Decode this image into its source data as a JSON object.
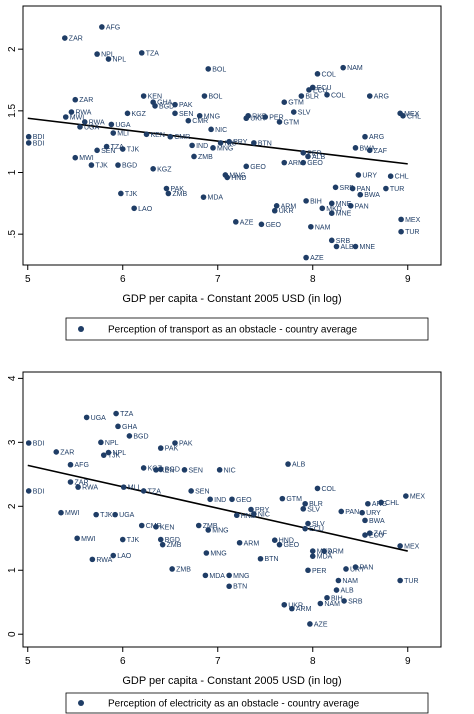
{
  "colors": {
    "marker": "#1f3d66",
    "line": "#000000",
    "axis": "#000000",
    "background": "#ffffff"
  },
  "chart_data": [
    {
      "type": "scatter",
      "title": "",
      "xlabel": "GDP per capita - Constant 2005 USD (in log)",
      "ylabel": "",
      "xlim": [
        4.95,
        9.35
      ],
      "ylim": [
        0.25,
        2.35
      ],
      "xticks": [
        "5",
        "6",
        "7",
        "8",
        "9"
      ],
      "yticks": [
        ".5",
        "1",
        "1.5",
        "2"
      ],
      "legend": "Perception of transport as an obstacle - country average",
      "legend_position": "bottom",
      "fit_line": {
        "x": [
          5.0,
          9.0
        ],
        "y": [
          1.44,
          1.07
        ]
      },
      "points": [
        {
          "label": "AFG",
          "x": 5.78,
          "y": 2.18
        },
        {
          "label": "ZAR",
          "x": 5.39,
          "y": 2.09
        },
        {
          "label": "NPL",
          "x": 5.73,
          "y": 1.96
        },
        {
          "label": "NPL",
          "x": 5.85,
          "y": 1.92
        },
        {
          "label": "TZA",
          "x": 6.2,
          "y": 1.97
        },
        {
          "label": "BOL",
          "x": 6.9,
          "y": 1.84
        },
        {
          "label": "NAM",
          "x": 8.32,
          "y": 1.85
        },
        {
          "label": "COL",
          "x": 8.05,
          "y": 1.8
        },
        {
          "label": "ECU",
          "x": 8.0,
          "y": 1.69
        },
        {
          "label": "ECU",
          "x": 7.96,
          "y": 1.67
        },
        {
          "label": "COL",
          "x": 8.15,
          "y": 1.63
        },
        {
          "label": "ARG",
          "x": 8.6,
          "y": 1.62
        },
        {
          "label": "BOL",
          "x": 6.86,
          "y": 1.62
        },
        {
          "label": "ZAR",
          "x": 5.5,
          "y": 1.59
        },
        {
          "label": "KEN",
          "x": 6.22,
          "y": 1.62
        },
        {
          "label": "GHA",
          "x": 6.32,
          "y": 1.57
        },
        {
          "label": "BGD",
          "x": 6.34,
          "y": 1.54
        },
        {
          "label": "PAK",
          "x": 6.55,
          "y": 1.55
        },
        {
          "label": "GTM",
          "x": 7.7,
          "y": 1.57
        },
        {
          "label": "BLR",
          "x": 7.88,
          "y": 1.62
        },
        {
          "label": "SLV",
          "x": 7.8,
          "y": 1.49
        },
        {
          "label": "MEX",
          "x": 8.92,
          "y": 1.48
        },
        {
          "label": "CHL",
          "x": 8.95,
          "y": 1.46
        },
        {
          "label": "RWA",
          "x": 5.46,
          "y": 1.49
        },
        {
          "label": "MWI",
          "x": 5.4,
          "y": 1.45
        },
        {
          "label": "KGZ",
          "x": 6.05,
          "y": 1.48
        },
        {
          "label": "SEN",
          "x": 6.55,
          "y": 1.48
        },
        {
          "label": "MNG",
          "x": 6.81,
          "y": 1.46
        },
        {
          "label": "RKR",
          "x": 7.32,
          "y": 1.46
        },
        {
          "label": "UKR",
          "x": 7.3,
          "y": 1.44
        },
        {
          "label": "PER",
          "x": 7.5,
          "y": 1.45
        },
        {
          "label": "RWA",
          "x": 5.6,
          "y": 1.41
        },
        {
          "label": "UGA",
          "x": 5.88,
          "y": 1.39
        },
        {
          "label": "UGA",
          "x": 5.55,
          "y": 1.37
        },
        {
          "label": "CMR",
          "x": 6.69,
          "y": 1.42
        },
        {
          "label": "NIC",
          "x": 6.93,
          "y": 1.35
        },
        {
          "label": "GTM",
          "x": 7.65,
          "y": 1.41
        },
        {
          "label": "MLI",
          "x": 5.9,
          "y": 1.32
        },
        {
          "label": "KEN",
          "x": 6.25,
          "y": 1.31
        },
        {
          "label": "CMR",
          "x": 6.5,
          "y": 1.29
        },
        {
          "label": "BDI",
          "x": 5.01,
          "y": 1.29
        },
        {
          "label": "BDI",
          "x": 5.01,
          "y": 1.24
        },
        {
          "label": "BTN",
          "x": 7.38,
          "y": 1.24
        },
        {
          "label": "ARG",
          "x": 8.55,
          "y": 1.29
        },
        {
          "label": "TJK",
          "x": 6.0,
          "y": 1.19
        },
        {
          "label": "TZA",
          "x": 5.83,
          "y": 1.21
        },
        {
          "label": "SEN",
          "x": 5.73,
          "y": 1.18
        },
        {
          "label": "IND",
          "x": 6.73,
          "y": 1.22
        },
        {
          "label": "NIC",
          "x": 7.03,
          "y": 1.24
        },
        {
          "label": "PRY",
          "x": 7.12,
          "y": 1.25
        },
        {
          "label": "MNG",
          "x": 6.95,
          "y": 1.2
        },
        {
          "label": "PER",
          "x": 7.9,
          "y": 1.16
        },
        {
          "label": "BWA",
          "x": 8.45,
          "y": 1.2
        },
        {
          "label": "ZAF",
          "x": 8.6,
          "y": 1.18
        },
        {
          "label": "MWI",
          "x": 5.5,
          "y": 1.12
        },
        {
          "label": "TJK",
          "x": 5.67,
          "y": 1.06
        },
        {
          "label": "BGD",
          "x": 5.95,
          "y": 1.06
        },
        {
          "label": "KGZ",
          "x": 6.32,
          "y": 1.03
        },
        {
          "label": "ZMB",
          "x": 6.75,
          "y": 1.13
        },
        {
          "label": "ALB",
          "x": 7.95,
          "y": 1.13
        },
        {
          "label": "ARM",
          "x": 7.7,
          "y": 1.08
        },
        {
          "label": "GEO",
          "x": 7.9,
          "y": 1.08
        },
        {
          "label": "MNG",
          "x": 7.08,
          "y": 0.98
        },
        {
          "label": "HND",
          "x": 7.1,
          "y": 0.96
        },
        {
          "label": "URY",
          "x": 8.48,
          "y": 0.98
        },
        {
          "label": "CHL",
          "x": 8.82,
          "y": 0.97
        },
        {
          "label": "GEO",
          "x": 7.3,
          "y": 1.05
        },
        {
          "label": "SRB",
          "x": 8.24,
          "y": 0.88
        },
        {
          "label": "PAN",
          "x": 8.42,
          "y": 0.87
        },
        {
          "label": "TUR",
          "x": 8.77,
          "y": 0.87
        },
        {
          "label": "PAK",
          "x": 6.46,
          "y": 0.87
        },
        {
          "label": "ZMB",
          "x": 6.48,
          "y": 0.83
        },
        {
          "label": "TJK",
          "x": 5.98,
          "y": 0.83
        },
        {
          "label": "MDA",
          "x": 6.85,
          "y": 0.8
        },
        {
          "label": "LAO",
          "x": 6.12,
          "y": 0.71
        },
        {
          "label": "BIH",
          "x": 7.93,
          "y": 0.77
        },
        {
          "label": "ARM",
          "x": 7.62,
          "y": 0.73
        },
        {
          "label": "UKR",
          "x": 7.6,
          "y": 0.69
        },
        {
          "label": "MKD",
          "x": 8.1,
          "y": 0.71
        },
        {
          "label": "MNE",
          "x": 8.2,
          "y": 0.67
        },
        {
          "label": "BWA",
          "x": 8.5,
          "y": 0.82
        },
        {
          "label": "PAN",
          "x": 8.4,
          "y": 0.73
        },
        {
          "label": "MNE",
          "x": 8.2,
          "y": 0.75
        },
        {
          "label": "AZE",
          "x": 7.19,
          "y": 0.6
        },
        {
          "label": "GEO",
          "x": 7.46,
          "y": 0.58
        },
        {
          "label": "NAM",
          "x": 7.98,
          "y": 0.56
        },
        {
          "label": "MEX",
          "x": 8.93,
          "y": 0.62
        },
        {
          "label": "SRB",
          "x": 8.2,
          "y": 0.45
        },
        {
          "label": "ALB",
          "x": 8.25,
          "y": 0.4
        },
        {
          "label": "MNE",
          "x": 8.45,
          "y": 0.4
        },
        {
          "label": "TUR",
          "x": 8.93,
          "y": 0.52
        },
        {
          "label": "AZE",
          "x": 7.93,
          "y": 0.31
        }
      ]
    },
    {
      "type": "scatter",
      "title": "",
      "xlabel": "GDP per capita - Constant 2005 USD (in log)",
      "ylabel": "",
      "xlim": [
        4.95,
        9.35
      ],
      "ylim": [
        -0.2,
        4.1
      ],
      "xticks": [
        "5",
        "6",
        "7",
        "8",
        "9"
      ],
      "yticks": [
        "0",
        "1",
        "2",
        "3",
        "4"
      ],
      "legend": "Perception of electricity as an obstacle - country average",
      "legend_position": "bottom",
      "fit_line": {
        "x": [
          5.0,
          9.0
        ],
        "y": [
          2.64,
          1.3
        ]
      },
      "points": [
        {
          "label": "TZA",
          "x": 5.93,
          "y": 3.45
        },
        {
          "label": "UGA",
          "x": 5.62,
          "y": 3.39
        },
        {
          "label": "GHA",
          "x": 5.95,
          "y": 3.25
        },
        {
          "label": "BGD",
          "x": 6.07,
          "y": 3.1
        },
        {
          "label": "NPL",
          "x": 5.77,
          "y": 3.0
        },
        {
          "label": "BDI",
          "x": 5.01,
          "y": 2.99
        },
        {
          "label": "PAK",
          "x": 6.55,
          "y": 2.99
        },
        {
          "label": "PAK",
          "x": 6.4,
          "y": 2.91
        },
        {
          "label": "ZAR",
          "x": 5.3,
          "y": 2.85
        },
        {
          "label": "NPL",
          "x": 5.85,
          "y": 2.84
        },
        {
          "label": "TJK",
          "x": 5.8,
          "y": 2.8
        },
        {
          "label": "AFG",
          "x": 5.45,
          "y": 2.65
        },
        {
          "label": "ALB",
          "x": 7.74,
          "y": 2.66
        },
        {
          "label": "KGZ",
          "x": 6.22,
          "y": 2.6
        },
        {
          "label": "BGD",
          "x": 6.4,
          "y": 2.58
        },
        {
          "label": "KEN",
          "x": 6.35,
          "y": 2.57
        },
        {
          "label": "SEN",
          "x": 6.65,
          "y": 2.57
        },
        {
          "label": "NIC",
          "x": 7.02,
          "y": 2.57
        },
        {
          "label": "ZAR",
          "x": 5.45,
          "y": 2.38
        },
        {
          "label": "RWA",
          "x": 5.53,
          "y": 2.3
        },
        {
          "label": "BDI",
          "x": 5.01,
          "y": 2.24
        },
        {
          "label": "MLI",
          "x": 6.01,
          "y": 2.3
        },
        {
          "label": "TZA",
          "x": 6.22,
          "y": 2.24
        },
        {
          "label": "SEN",
          "x": 6.72,
          "y": 2.24
        },
        {
          "label": "COL",
          "x": 8.05,
          "y": 2.28
        },
        {
          "label": "MEX",
          "x": 8.98,
          "y": 2.16
        },
        {
          "label": "IND",
          "x": 6.92,
          "y": 2.11
        },
        {
          "label": "GEO",
          "x": 7.15,
          "y": 2.11
        },
        {
          "label": "GTM",
          "x": 7.68,
          "y": 2.12
        },
        {
          "label": "BLR",
          "x": 7.92,
          "y": 2.04
        },
        {
          "label": "ARG",
          "x": 8.58,
          "y": 2.04
        },
        {
          "label": "CHL",
          "x": 8.72,
          "y": 2.06
        },
        {
          "label": "PRY",
          "x": 7.35,
          "y": 1.95
        },
        {
          "label": "SLV",
          "x": 7.9,
          "y": 1.96
        },
        {
          "label": "PAN",
          "x": 8.3,
          "y": 1.92
        },
        {
          "label": "URY",
          "x": 8.52,
          "y": 1.9
        },
        {
          "label": "MWI",
          "x": 5.35,
          "y": 1.9
        },
        {
          "label": "TJK",
          "x": 5.72,
          "y": 1.87
        },
        {
          "label": "UGA",
          "x": 5.92,
          "y": 1.87
        },
        {
          "label": "HND",
          "x": 7.2,
          "y": 1.86
        },
        {
          "label": "NIC",
          "x": 7.38,
          "y": 1.88
        },
        {
          "label": "BWA",
          "x": 8.55,
          "y": 1.78
        },
        {
          "label": "CMR",
          "x": 6.2,
          "y": 1.7
        },
        {
          "label": "KEN",
          "x": 6.35,
          "y": 1.68
        },
        {
          "label": "ZMB",
          "x": 6.8,
          "y": 1.7
        },
        {
          "label": "MNG",
          "x": 6.9,
          "y": 1.63
        },
        {
          "label": "SLV",
          "x": 7.95,
          "y": 1.73
        },
        {
          "label": "ECU",
          "x": 7.92,
          "y": 1.65
        },
        {
          "label": "ZAF",
          "x": 8.6,
          "y": 1.58
        },
        {
          "label": "ECU",
          "x": 8.55,
          "y": 1.55
        },
        {
          "label": "MEX",
          "x": 8.92,
          "y": 1.38
        },
        {
          "label": "MWI",
          "x": 5.52,
          "y": 1.5
        },
        {
          "label": "TJK",
          "x": 6.0,
          "y": 1.48
        },
        {
          "label": "BGD",
          "x": 6.4,
          "y": 1.48
        },
        {
          "label": "ARM",
          "x": 7.23,
          "y": 1.43
        },
        {
          "label": "HND",
          "x": 7.6,
          "y": 1.47
        },
        {
          "label": "GEO",
          "x": 7.65,
          "y": 1.4
        },
        {
          "label": "ZMB",
          "x": 6.42,
          "y": 1.4
        },
        {
          "label": "RWA",
          "x": 5.68,
          "y": 1.17
        },
        {
          "label": "LAO",
          "x": 5.9,
          "y": 1.23
        },
        {
          "label": "MNG",
          "x": 6.88,
          "y": 1.27
        },
        {
          "label": "BTN",
          "x": 7.45,
          "y": 1.18
        },
        {
          "label": "MKD",
          "x": 8.0,
          "y": 1.3
        },
        {
          "label": "ARM",
          "x": 8.12,
          "y": 1.3
        },
        {
          "label": "MDA",
          "x": 8.0,
          "y": 1.22
        },
        {
          "label": "ZMB",
          "x": 6.52,
          "y": 1.02
        },
        {
          "label": "PER",
          "x": 7.95,
          "y": 1.0
        },
        {
          "label": "PAN",
          "x": 8.45,
          "y": 1.05
        },
        {
          "label": "URY",
          "x": 8.35,
          "y": 1.02
        },
        {
          "label": "MDA",
          "x": 6.87,
          "y": 0.92
        },
        {
          "label": "MNG",
          "x": 7.12,
          "y": 0.92
        },
        {
          "label": "BTN",
          "x": 7.12,
          "y": 0.75
        },
        {
          "label": "NAM",
          "x": 8.27,
          "y": 0.84
        },
        {
          "label": "TUR",
          "x": 8.92,
          "y": 0.84
        },
        {
          "label": "BIH",
          "x": 8.15,
          "y": 0.57
        },
        {
          "label": "ALB",
          "x": 8.25,
          "y": 0.69
        },
        {
          "label": "SRB",
          "x": 8.33,
          "y": 0.52
        },
        {
          "label": "UKR",
          "x": 7.7,
          "y": 0.46
        },
        {
          "label": "ARM",
          "x": 7.78,
          "y": 0.4
        },
        {
          "label": "NAM",
          "x": 8.08,
          "y": 0.48
        },
        {
          "label": "AZE",
          "x": 7.97,
          "y": 0.16
        }
      ]
    }
  ]
}
